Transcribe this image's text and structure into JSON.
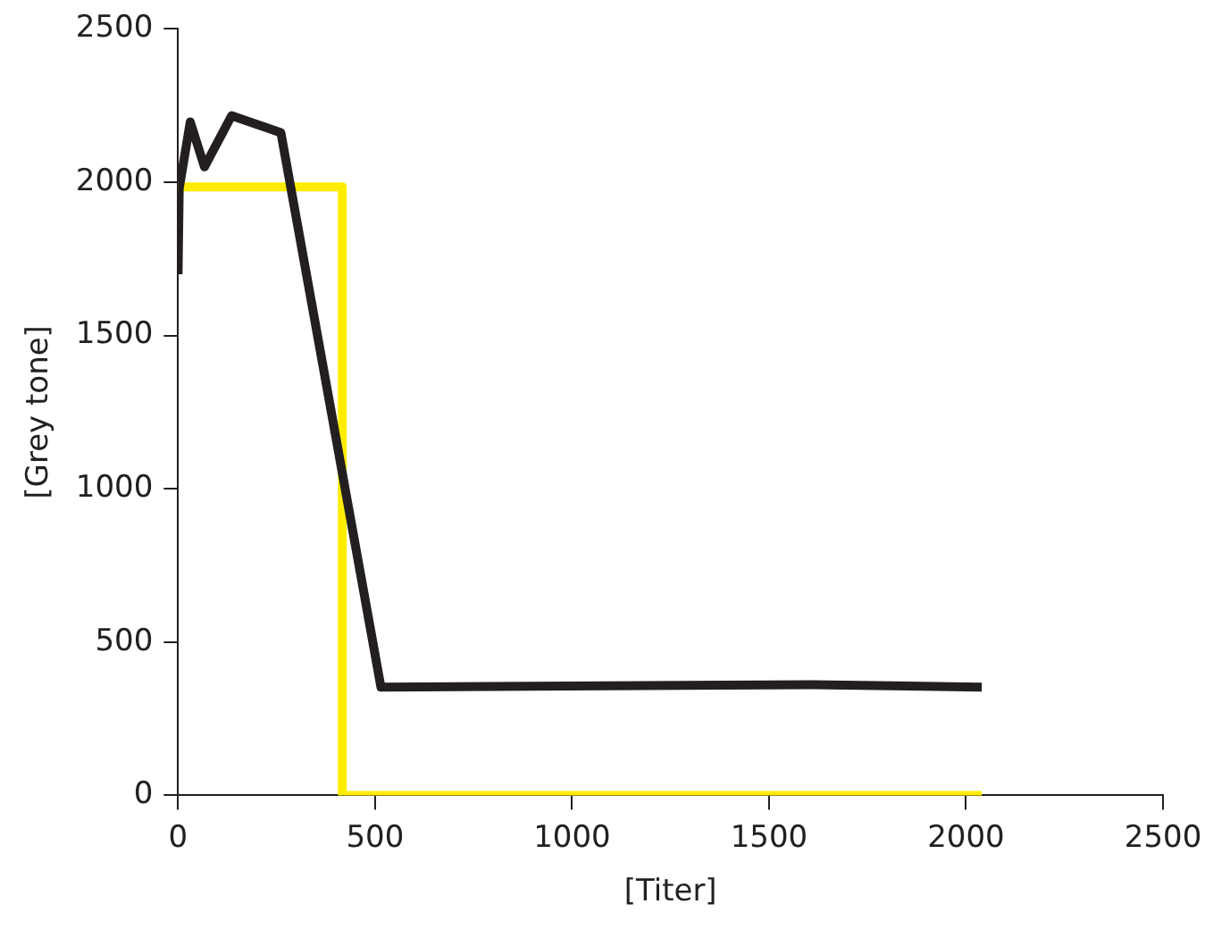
{
  "chart_data": {
    "type": "line",
    "xlabel": "[Titer]",
    "ylabel": "[Grey tone]",
    "xlim": [
      0,
      2500
    ],
    "ylim": [
      0,
      2500
    ],
    "xticks": [
      0,
      500,
      1000,
      1500,
      2000,
      2500
    ],
    "yticks": [
      0,
      500,
      1000,
      1500,
      2000,
      2500
    ],
    "grid": false,
    "legend": false,
    "marker": "none",
    "line_style": "solid",
    "series": [
      {
        "color": "#231f20",
        "x": [
          0,
          3,
          31,
          67,
          136,
          261,
          515,
          1610,
          2040
        ],
        "values": [
          1700,
          1980,
          2197,
          2050,
          2217,
          2162,
          353,
          361,
          353
        ]
      },
      {
        "color": "#ffed00",
        "x": [
          0,
          417,
          417,
          2040
        ],
        "values": [
          1985,
          1985,
          0,
          0
        ]
      }
    ]
  }
}
